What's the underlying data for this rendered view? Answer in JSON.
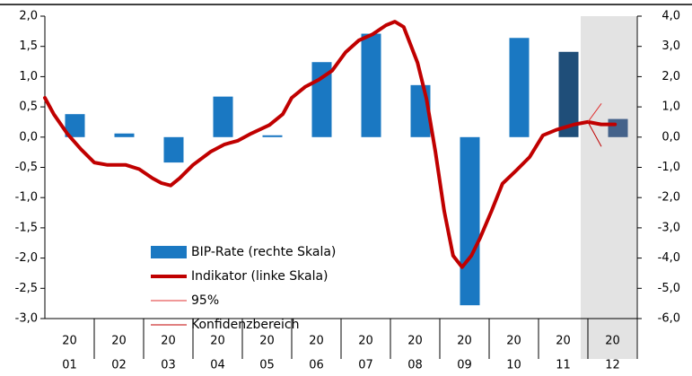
{
  "chart_data": {
    "type": "bar",
    "categories": [
      [
        "20",
        "01"
      ],
      [
        "20",
        "02"
      ],
      [
        "20",
        "03"
      ],
      [
        "20",
        "04"
      ],
      [
        "20",
        "05"
      ],
      [
        "20",
        "06"
      ],
      [
        "20",
        "07"
      ],
      [
        "20",
        "08"
      ],
      [
        "20",
        "09"
      ],
      [
        "20",
        "10"
      ],
      [
        "20",
        "11"
      ],
      [
        "20",
        "12"
      ]
    ],
    "ylim": [
      -3.0,
      2.0
    ],
    "yticks": [
      {
        "value": 2.0,
        "label": "2,0"
      },
      {
        "value": 1.5,
        "label": "1,5"
      },
      {
        "value": 1.0,
        "label": "1,0"
      },
      {
        "value": 0.5,
        "label": "0,5"
      },
      {
        "value": 0.0,
        "label": "0,0"
      },
      {
        "value": -0.5,
        "label": "-0,5"
      },
      {
        "value": -1.0,
        "label": "-1,0"
      },
      {
        "value": -1.5,
        "label": "-1,5"
      },
      {
        "value": -2.0,
        "label": "-2,0"
      },
      {
        "value": -2.5,
        "label": "-2,5"
      },
      {
        "value": -3.0,
        "label": "-3,0"
      }
    ],
    "y2lim": [
      -6.0,
      4.0
    ],
    "y2ticks": [
      {
        "value": 4.0,
        "label": "4,0"
      },
      {
        "value": 3.0,
        "label": "3,0"
      },
      {
        "value": 2.0,
        "label": "2,0"
      },
      {
        "value": 1.0,
        "label": "1,0"
      },
      {
        "value": 0.0,
        "label": "0,0"
      },
      {
        "value": -1.0,
        "label": "-1,0"
      },
      {
        "value": -2.0,
        "label": "-2,0"
      },
      {
        "value": -3.0,
        "label": "-3,0"
      },
      {
        "value": -4.0,
        "label": "-4,0"
      },
      {
        "value": -5.0,
        "label": "-5,0"
      },
      {
        "value": -6.0,
        "label": "-6,0"
      }
    ],
    "xlim": [
      2001,
      2013
    ],
    "series": [
      {
        "name": "BIP-Rate (rechte Skala)",
        "type": "bar",
        "axis": "y2",
        "color": "#1a78c2",
        "colors": [
          "#1a78c2",
          "#1a78c2",
          "#1a78c2",
          "#1a78c2",
          "#1a78c2",
          "#1a78c2",
          "#1a78c2",
          "#1a78c2",
          "#1a78c2",
          "#1a78c2",
          "#1f4e79",
          "#44628a"
        ],
        "values": [
          0.76,
          0.12,
          -0.84,
          1.34,
          0.06,
          2.48,
          3.42,
          1.72,
          -5.56,
          3.28,
          2.82,
          0.6
        ]
      },
      {
        "name": "Indikator (linke Skala)",
        "type": "line",
        "color": "#c00000",
        "width": 4,
        "x": [
          2001.0,
          2001.18,
          2001.45,
          2001.73,
          2002.0,
          2002.27,
          2002.64,
          2002.91,
          2003.18,
          2003.36,
          2003.55,
          2003.73,
          2004.0,
          2004.36,
          2004.64,
          2004.91,
          2005.18,
          2005.55,
          2005.82,
          2006.0,
          2006.27,
          2006.55,
          2006.82,
          2007.09,
          2007.36,
          2007.64,
          2007.91,
          2008.09,
          2008.27,
          2008.55,
          2008.73,
          2008.91,
          2009.09,
          2009.27,
          2009.45,
          2009.64,
          2009.82,
          2010.05,
          2010.27,
          2010.55,
          2010.82,
          2011.09,
          2011.36,
          2011.73,
          2012.0,
          2012.27,
          2012.55
        ],
        "values": [
          0.65,
          0.38,
          0.06,
          -0.2,
          -0.42,
          -0.46,
          -0.46,
          -0.53,
          -0.68,
          -0.76,
          -0.8,
          -0.68,
          -0.46,
          -0.24,
          -0.12,
          -0.06,
          0.06,
          0.2,
          0.38,
          0.65,
          0.83,
          0.95,
          1.1,
          1.4,
          1.6,
          1.7,
          1.85,
          1.91,
          1.82,
          1.23,
          0.63,
          -0.24,
          -1.22,
          -1.96,
          -2.15,
          -1.96,
          -1.66,
          -1.22,
          -0.77,
          -0.55,
          -0.33,
          0.03,
          0.12,
          0.21,
          0.25,
          0.21,
          0.21
        ]
      },
      {
        "name": "95%",
        "type": "line",
        "color": "#e03030",
        "width": 1,
        "x": [
          2012.0,
          2012.27
        ],
        "values": [
          0.25,
          0.55
        ]
      },
      {
        "name": "Konfidenzbereich",
        "type": "line",
        "color": "#c00000",
        "width": 1,
        "x": [
          2012.0,
          2012.27
        ],
        "values": [
          0.25,
          -0.15
        ]
      }
    ]
  }
}
